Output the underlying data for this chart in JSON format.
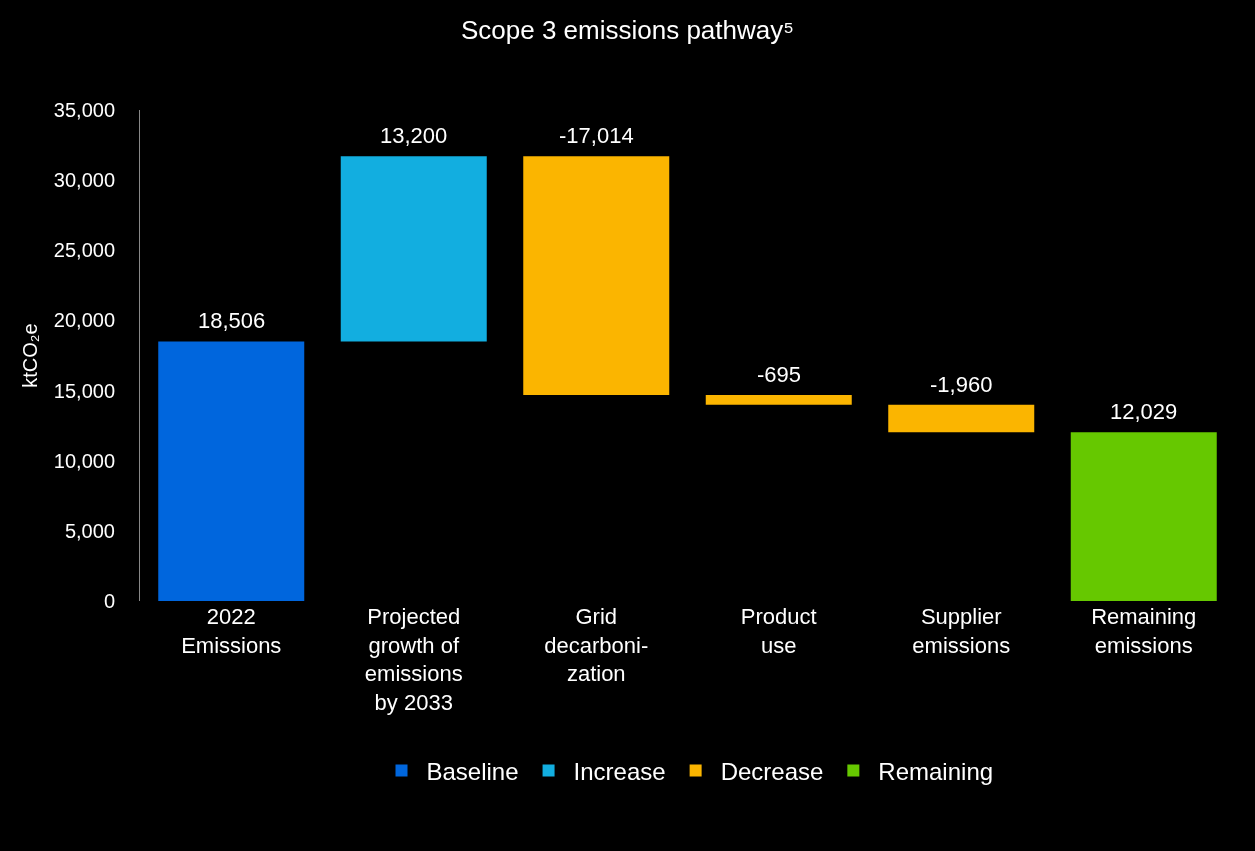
{
  "chart_data": {
    "type": "bar",
    "title": "Scope 3 emissions pathway⁵",
    "ylabel": "ktCO₂e",
    "categories": [
      "2022 Emissions",
      "Projected growth of emissions by 2033",
      "Grid decarboni-zation",
      "Product use",
      "Supplier emissions",
      "Remaining emissions"
    ],
    "series": [
      {
        "name": "Baseline",
        "color": "#0066dd",
        "base": [
          0,
          null,
          null,
          null,
          null,
          null
        ],
        "values": [
          18506,
          null,
          null,
          null,
          null,
          null
        ],
        "value_labels": [
          "18,506",
          null,
          null,
          null,
          null,
          null
        ]
      },
      {
        "name": "Increase",
        "color": "#12aee0",
        "base": [
          null,
          18506,
          null,
          null,
          null,
          null
        ],
        "values": [
          null,
          13200,
          null,
          null,
          null,
          null
        ],
        "value_labels": [
          null,
          "13,200",
          null,
          null,
          null,
          null
        ]
      },
      {
        "name": "Decrease",
        "color": "#fbb500",
        "base": [
          null,
          null,
          31706,
          14692,
          13997,
          null
        ],
        "values": [
          null,
          null,
          -17014,
          -695,
          -1960,
          null
        ],
        "value_labels": [
          null,
          null,
          "-17,014",
          "-695",
          "-1,960",
          null
        ]
      },
      {
        "name": "Remaining",
        "color": "#66c800",
        "base": [
          null,
          null,
          null,
          null,
          null,
          0
        ],
        "values": [
          null,
          null,
          null,
          null,
          null,
          12029
        ],
        "value_labels": [
          null,
          null,
          null,
          null,
          null,
          "12,029"
        ]
      }
    ],
    "ylim": [
      0,
      35000
    ],
    "yticks": [
      {
        "value": 0,
        "label": "0"
      },
      {
        "value": 5000,
        "label": "5,000"
      },
      {
        "value": 10000,
        "label": "10,000"
      },
      {
        "value": 15000,
        "label": "15,000"
      },
      {
        "value": 20000,
        "label": "20,000"
      },
      {
        "value": 25000,
        "label": "25,000"
      },
      {
        "value": 30000,
        "label": "30,000"
      },
      {
        "value": 35000,
        "label": "35,000"
      }
    ],
    "grid": false,
    "legend": "bottom"
  }
}
